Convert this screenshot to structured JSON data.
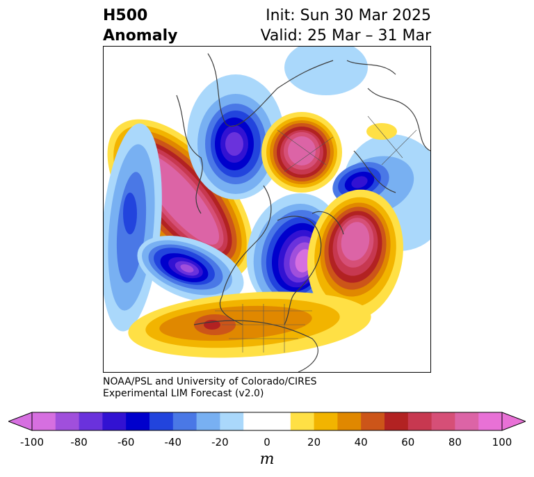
{
  "title": {
    "left_line1": "H500",
    "left_line2": "Anomaly",
    "right_line1": "Init: Sun 30 Mar 2025",
    "right_line2": "Valid: 25 Mar – 31 Mar"
  },
  "credits": {
    "line1": "NOAA/PSL and University of Colorado/CIRES",
    "line2": "Experimental LIM Forecast (v2.0)"
  },
  "colorbar": {
    "units": "m",
    "ticks": [
      "-100",
      "-80",
      "-60",
      "-40",
      "-20",
      "0",
      "20",
      "40",
      "60",
      "80",
      "100"
    ],
    "extend": "both",
    "colors": [
      "#d66fe0",
      "#a04fdc",
      "#6a32dc",
      "#3212d2",
      "#0000cc",
      "#2244dd",
      "#4a78e6",
      "#78b0f2",
      "#aad8fb",
      "#ffffff",
      "#ffffff",
      "#ffe045",
      "#f2b400",
      "#e08800",
      "#cc5519",
      "#b22222",
      "#c73850",
      "#d64f77",
      "#dc64a6",
      "#e871d6"
    ]
  },
  "map": {
    "projection": "north-polar stereographic",
    "field": "500-hPa geopotential height anomaly",
    "features": [
      {
        "label": "positive anomaly",
        "region": "Alaska / Bering Sea",
        "peak": 100
      },
      {
        "label": "negative anomaly",
        "region": "North Pacific south of Aleutians",
        "peak": -60
      },
      {
        "label": "negative anomaly",
        "region": "Central Asia",
        "peak": -80
      },
      {
        "label": "positive anomaly",
        "region": "East Siberia",
        "peak": 100
      },
      {
        "label": "negative anomaly",
        "region": "Northeast Atlantic / Scandinavia",
        "peak": -80
      },
      {
        "label": "negative anomaly",
        "region": "Hudson Bay / eastern Canada",
        "peak": -80
      },
      {
        "label": "positive anomaly",
        "region": "Western Atlantic / Greenland Sea",
        "peak": 80
      },
      {
        "label": "positive anomaly",
        "region": "Southern Rockies / Mexico",
        "peak": 60
      }
    ]
  }
}
